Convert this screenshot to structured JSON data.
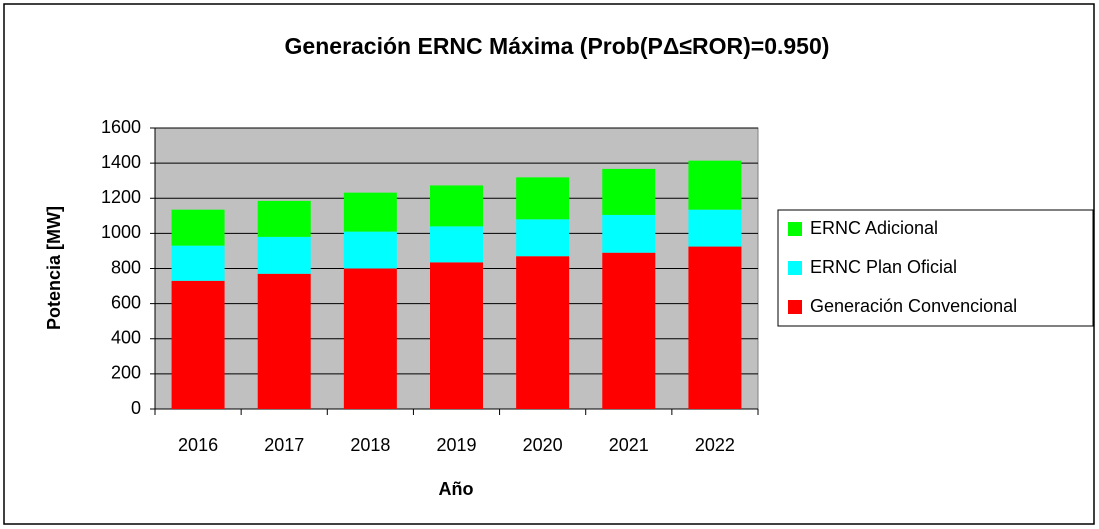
{
  "chart_data": {
    "type": "bar",
    "stacked": true,
    "title": "Generación ERNC Máxima (Prob(PΔ≤ROR)=0.950)",
    "x_label": "Año",
    "y_label": "Potencia [MW]",
    "categories": [
      "2016",
      "2017",
      "2018",
      "2019",
      "2020",
      "2021",
      "2022"
    ],
    "series": [
      {
        "name": "Generación Convencional",
        "color": "#ff0000",
        "values": [
          730,
          770,
          800,
          835,
          870,
          890,
          925
        ]
      },
      {
        "name": "ERNC Plan Oficial",
        "color": "#00ffff",
        "values": [
          200,
          210,
          210,
          205,
          210,
          215,
          210
        ]
      },
      {
        "name": "ERNC Adicional",
        "color": "#00ff00",
        "values": [
          205,
          205,
          222,
          233,
          239,
          262,
          279
        ]
      }
    ],
    "ylim": [
      0,
      1600
    ],
    "yticks": [
      0,
      200,
      400,
      600,
      800,
      1000,
      1200,
      1400,
      1600
    ],
    "grid": true,
    "legend": "right"
  }
}
